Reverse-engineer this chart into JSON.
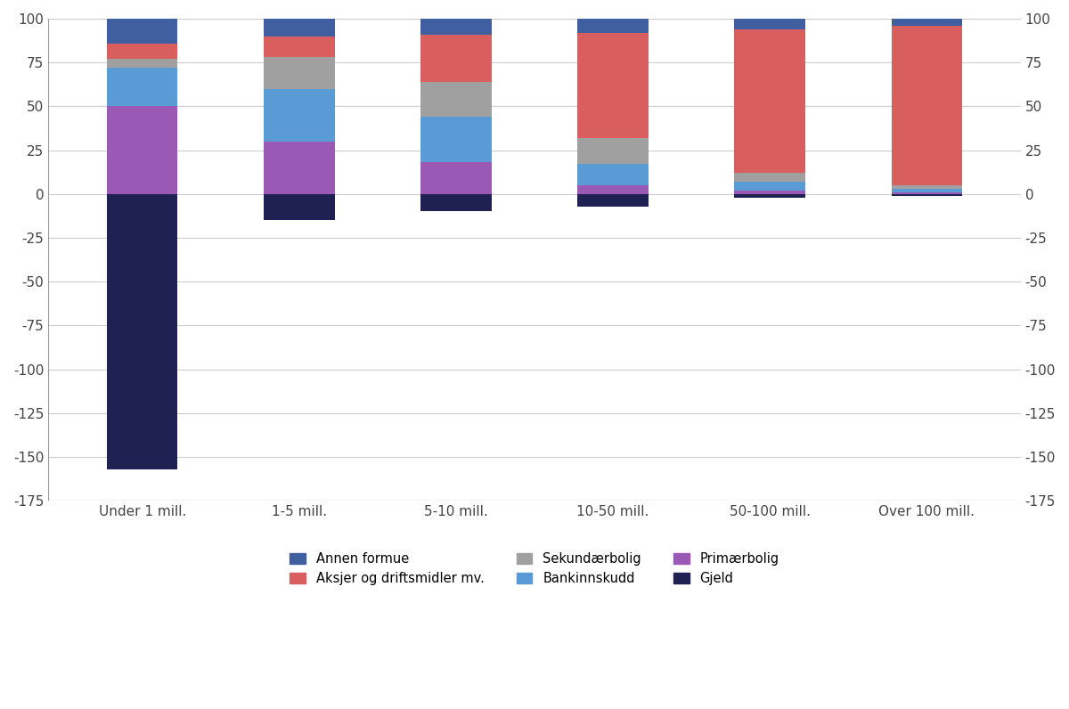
{
  "categories": [
    "Under 1 mill.",
    "1-5 mill.",
    "5-10 mill.",
    "10-50 mill.",
    "50-100 mill.",
    "Over 100 mill."
  ],
  "series": {
    "Gjeld": [
      -157,
      -15,
      -10,
      -7,
      -2,
      -1
    ],
    "Primærbolig": [
      50,
      30,
      18,
      5,
      2,
      1
    ],
    "Bankinnskudd": [
      22,
      30,
      26,
      12,
      5,
      2
    ],
    "Sekundærbolig": [
      5,
      18,
      20,
      15,
      5,
      2
    ],
    "Aksjer og driftsmidler mv.": [
      9,
      12,
      27,
      60,
      82,
      91
    ],
    "Annen formue": [
      14,
      10,
      9,
      8,
      8,
      4
    ]
  },
  "colors": {
    "Gjeld": "#1e2152",
    "Primærbolig": "#9b59b6",
    "Bankinnskudd": "#5b9bd5",
    "Sekundærbolig": "#a0a0a0",
    "Aksjer og driftsmidler mv.": "#d95f5f",
    "Annen formue": "#3f5fa0"
  },
  "ylim": [
    -175,
    100
  ],
  "yticks": [
    -175,
    -150,
    -125,
    -100,
    -75,
    -50,
    -25,
    0,
    25,
    50,
    75,
    100
  ],
  "background_color": "#ffffff",
  "grid_color": "#cccccc",
  "bar_width": 0.45,
  "positive_order": [
    "Primærbolig",
    "Bankinnskudd",
    "Sekundærbolig",
    "Aksjer og driftsmidler mv.",
    "Annen formue"
  ],
  "negative_order": [
    "Gjeld"
  ],
  "legend_row1": [
    "Annen formue",
    "Aksjer og driftsmidler mv.",
    "Sekundærbolig"
  ],
  "legend_row2": [
    "Bankinnskudd",
    "Primærbolig",
    "Gjeld"
  ]
}
